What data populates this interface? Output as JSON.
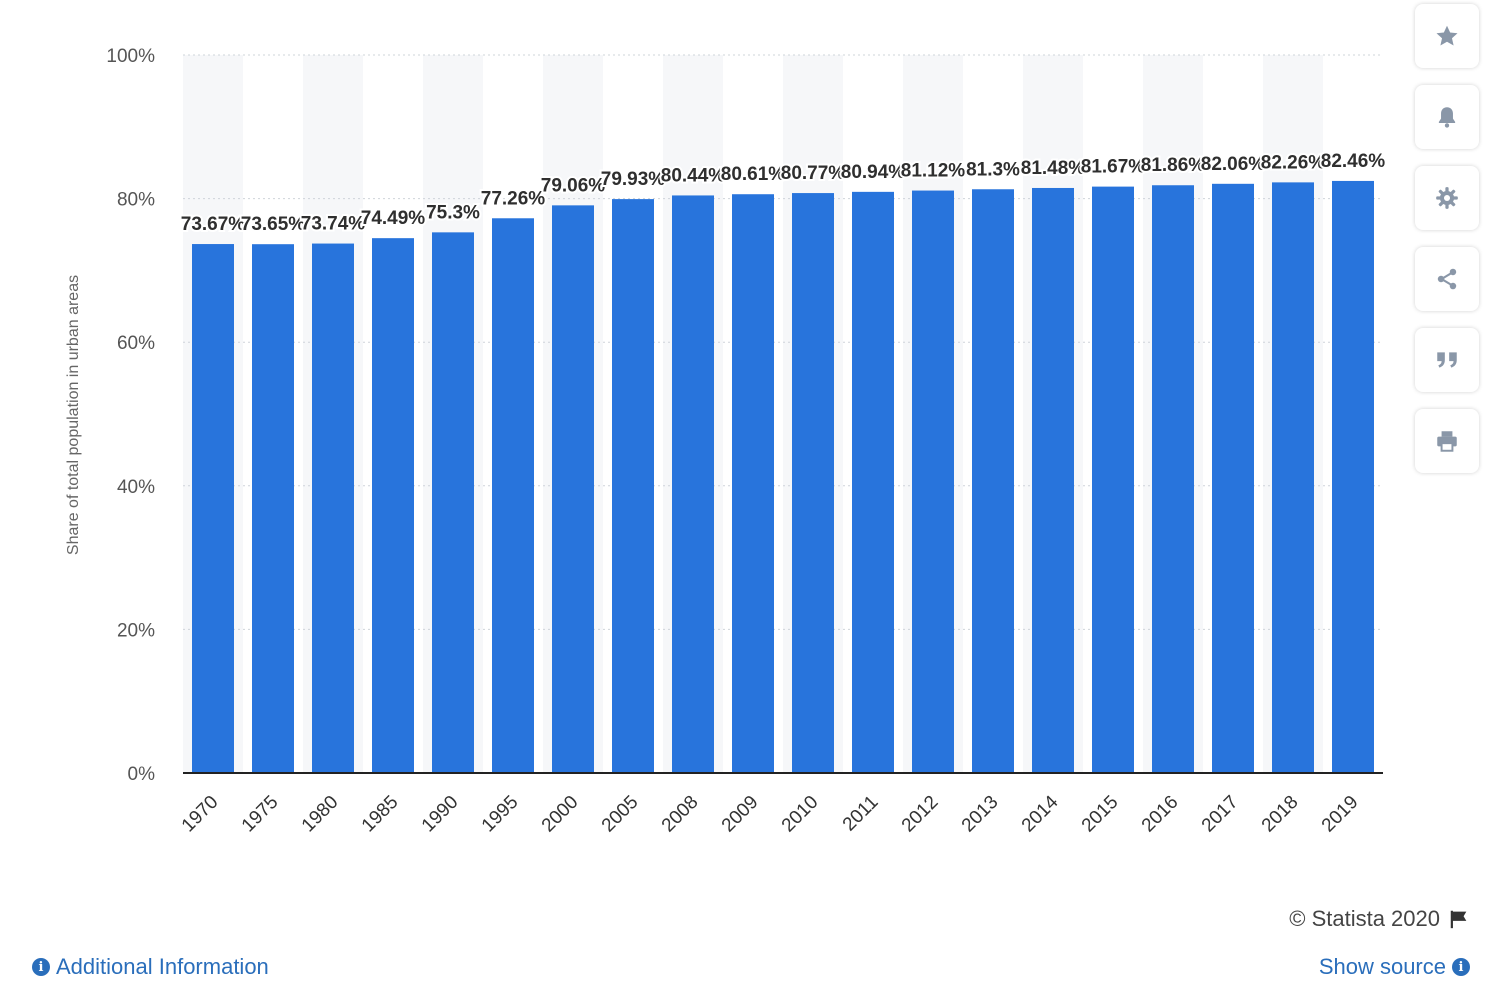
{
  "chart_data": {
    "type": "bar",
    "title": "",
    "xlabel": "",
    "ylabel": "Share of total population in urban areas",
    "ylim": [
      0,
      100
    ],
    "yticks": [
      0,
      20,
      40,
      60,
      80,
      100
    ],
    "ytick_labels": [
      "0%",
      "20%",
      "40%",
      "60%",
      "80%",
      "100%"
    ],
    "categories": [
      "1970",
      "1975",
      "1980",
      "1985",
      "1990",
      "1995",
      "2000",
      "2005",
      "2008",
      "2009",
      "2010",
      "2011",
      "2012",
      "2013",
      "2014",
      "2015",
      "2016",
      "2017",
      "2018",
      "2019"
    ],
    "values": [
      73.67,
      73.65,
      73.74,
      74.49,
      75.3,
      77.26,
      79.06,
      79.93,
      80.44,
      80.61,
      80.77,
      80.94,
      81.12,
      81.3,
      81.48,
      81.67,
      81.86,
      82.06,
      82.26,
      82.46
    ],
    "value_labels": [
      "73.67%",
      "73.65%",
      "73.74%",
      "74.49%",
      "75.3%",
      "77.26%",
      "79.06%",
      "79.93%",
      "80.44%",
      "80.61%",
      "80.77%",
      "80.94%",
      "81.12%",
      "81.3%",
      "81.48%",
      "81.67%",
      "81.86%",
      "82.06%",
      "82.26%",
      "82.46%"
    ],
    "bar_color": "#2874dc",
    "grid": true
  },
  "toolbar": {
    "items": [
      {
        "name": "favorite",
        "icon": "star-icon"
      },
      {
        "name": "notify",
        "icon": "bell-icon"
      },
      {
        "name": "settings",
        "icon": "gear-icon"
      },
      {
        "name": "share",
        "icon": "share-icon"
      },
      {
        "name": "cite",
        "icon": "quote-icon"
      },
      {
        "name": "print",
        "icon": "print-icon"
      }
    ]
  },
  "footer": {
    "credit": "© Statista 2020",
    "additional_info": "Additional Information",
    "show_source": "Show source",
    "link_color": "#2a6ebb"
  }
}
